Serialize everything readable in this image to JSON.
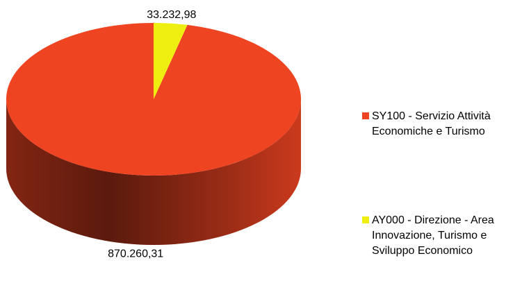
{
  "chart_data": {
    "type": "pie3d",
    "categories": [
      "SY100 - Servizio Attività Economiche e Turismo",
      "AY000 - Direzione - Area Innovazione, Turismo e Sviluppo Economico"
    ],
    "values": [
      870260.31,
      33232.98
    ],
    "value_labels": [
      "870.260,31",
      "33.232,98"
    ],
    "colors": [
      "#ee4422",
      "#eeee11"
    ],
    "legend": "right"
  }
}
